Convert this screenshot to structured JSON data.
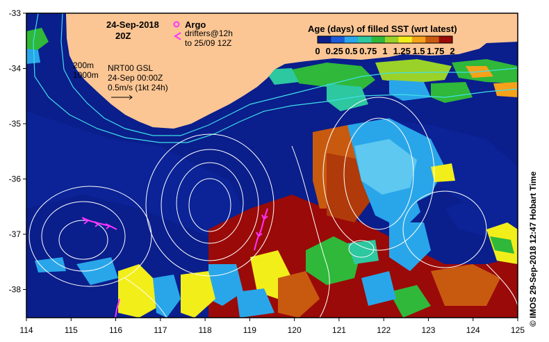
{
  "map": {
    "date_label": "24-Sep-2018",
    "time_label": "20Z",
    "depth_labels": [
      "200m",
      "1000m"
    ],
    "product_label": "NRT00 GSL",
    "product_time": "24-Sep 00:00Z",
    "scale_label": "0.5m/s (1kt 24h)",
    "argo_label": "Argo",
    "drifters_label": "drifters@12h",
    "drifters_range": "to 25/09 12Z",
    "colorbar": {
      "title": "Age (days) of filled SST (wrt latest)",
      "ticks": [
        "0",
        "0.25",
        "0.5",
        "0.75",
        "1",
        "1.25",
        "1.5",
        "1.75",
        "2"
      ],
      "colors": [
        "#0a1e8c",
        "#1a5ad8",
        "#29a6ea",
        "#2dc7a0",
        "#2fb83a",
        "#9ad22a",
        "#f2ee1a",
        "#f5a21a",
        "#c85a10",
        "#9a0a08"
      ]
    },
    "credit": "© IMOS 29-Sep-2018 12:47 Hobart Time",
    "x_ticks": [
      "114",
      "115",
      "116",
      "117",
      "118",
      "119",
      "120",
      "121",
      "122",
      "123",
      "124",
      "125"
    ],
    "y_ticks": [
      "-33",
      "-34",
      "-35",
      "-36",
      "-37",
      "-38"
    ],
    "colors": {
      "land": "#fbc694",
      "ocean": "#0a1e8c",
      "isobath": "#40e0e8",
      "contour": "#ffffff",
      "drifter": "#ff33ff"
    }
  }
}
